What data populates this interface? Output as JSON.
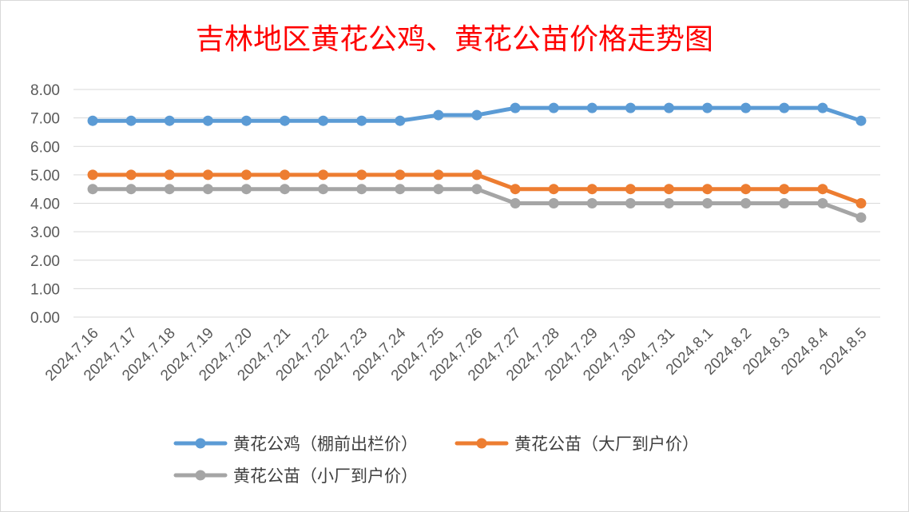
{
  "chart_data": {
    "type": "line",
    "title": "吉林地区黄花公鸡、黄花公苗价格走势图",
    "xlabel": "",
    "ylabel": "",
    "ylim": [
      0,
      8
    ],
    "yticks": [
      "0.00",
      "1.00",
      "2.00",
      "3.00",
      "4.00",
      "5.00",
      "6.00",
      "7.00",
      "8.00"
    ],
    "grid": true,
    "legend_position": "bottom",
    "categories": [
      "2024.7.16",
      "2024.7.17",
      "2024.7.18",
      "2024.7.19",
      "2024.7.20",
      "2024.7.21",
      "2024.7.22",
      "2024.7.23",
      "2024.7.24",
      "2024.7.25",
      "2024.7.26",
      "2024.7.27",
      "2024.7.28",
      "2024.7.29",
      "2024.7.30",
      "2024.7.31",
      "2024.8.1",
      "2024.8.2",
      "2024.8.3",
      "2024.8.4",
      "2024.8.5"
    ],
    "series": [
      {
        "name": "黄花公鸡（棚前出栏价）",
        "color": "#5b9bd5",
        "values": [
          6.9,
          6.9,
          6.9,
          6.9,
          6.9,
          6.9,
          6.9,
          6.9,
          6.9,
          7.1,
          7.1,
          7.35,
          7.35,
          7.35,
          7.35,
          7.35,
          7.35,
          7.35,
          7.35,
          7.35,
          6.9
        ]
      },
      {
        "name": "黄花公苗（大厂到户价）",
        "color": "#ed7d31",
        "values": [
          5.0,
          5.0,
          5.0,
          5.0,
          5.0,
          5.0,
          5.0,
          5.0,
          5.0,
          5.0,
          5.0,
          4.5,
          4.5,
          4.5,
          4.5,
          4.5,
          4.5,
          4.5,
          4.5,
          4.5,
          4.0
        ]
      },
      {
        "name": "黄花公苗（小厂到户价）",
        "color": "#a5a5a5",
        "values": [
          4.5,
          4.5,
          4.5,
          4.5,
          4.5,
          4.5,
          4.5,
          4.5,
          4.5,
          4.5,
          4.5,
          4.0,
          4.0,
          4.0,
          4.0,
          4.0,
          4.0,
          4.0,
          4.0,
          4.0,
          3.5
        ]
      }
    ]
  }
}
